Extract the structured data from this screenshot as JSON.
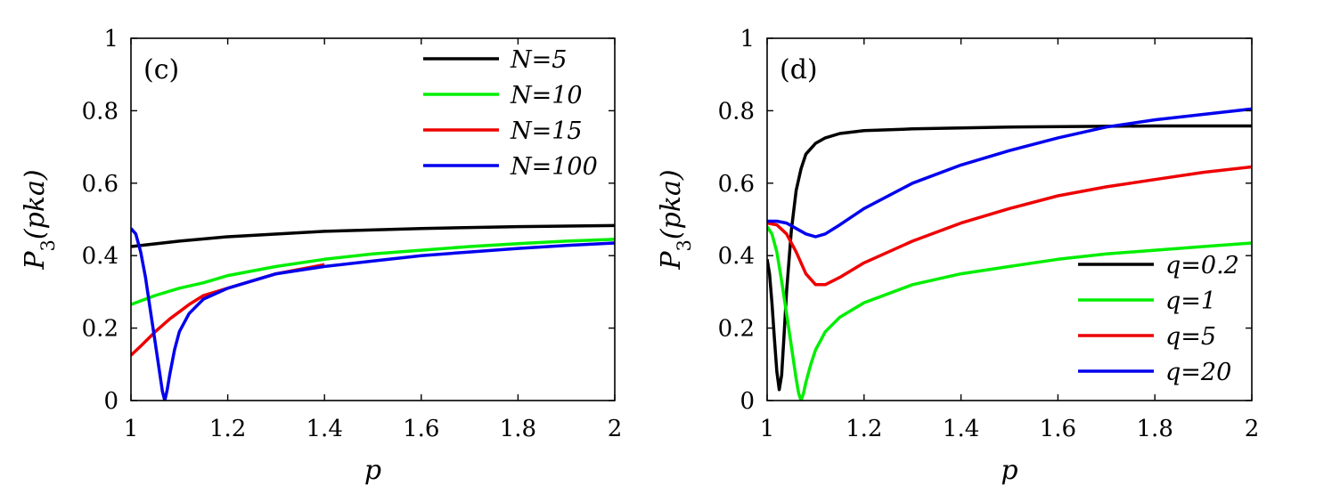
{
  "chart_data": [
    {
      "type": "line",
      "panel_label": "(c)",
      "xlabel": "p",
      "ylabel": "P3(pka)",
      "ylabel_main": "P",
      "ylabel_sub": "3",
      "ylabel_tail": "(pka)",
      "xlim": [
        1,
        2
      ],
      "ylim": [
        0,
        1
      ],
      "xticks": [
        1,
        1.2,
        1.4,
        1.6,
        1.8,
        2
      ],
      "xtick_labels": [
        "1",
        "1.2",
        "1.4",
        "1.6",
        "1.8",
        "2"
      ],
      "yticks": [
        0,
        0.2,
        0.4,
        0.6,
        0.8,
        1
      ],
      "ytick_labels": [
        "0",
        "0.2",
        "0.4",
        "0.6",
        "0.8",
        "1"
      ],
      "legend_position": "top-right",
      "series": [
        {
          "name": "N=5",
          "color": "#000000",
          "x": [
            1.0,
            1.1,
            1.2,
            1.4,
            1.6,
            1.8,
            2.0
          ],
          "y": [
            0.425,
            0.44,
            0.452,
            0.467,
            0.475,
            0.48,
            0.483
          ]
        },
        {
          "name": "N=10",
          "color": "#00ee00",
          "x": [
            1.0,
            1.05,
            1.1,
            1.15,
            1.2,
            1.3,
            1.4,
            1.5,
            1.6,
            1.7,
            1.8,
            1.9,
            2.0
          ],
          "y": [
            0.265,
            0.29,
            0.31,
            0.325,
            0.345,
            0.37,
            0.39,
            0.405,
            0.415,
            0.425,
            0.433,
            0.44,
            0.445
          ]
        },
        {
          "name": "N=15",
          "color": "#ee0000",
          "x": [
            1.0,
            1.02,
            1.05,
            1.08,
            1.1,
            1.12,
            1.15,
            1.2,
            1.3,
            1.4
          ],
          "y": [
            0.125,
            0.15,
            0.19,
            0.225,
            0.245,
            0.265,
            0.29,
            0.31,
            0.35,
            0.375
          ]
        },
        {
          "name": "N=100",
          "color": "#0000ee",
          "x": [
            1.0,
            1.01,
            1.02,
            1.03,
            1.04,
            1.05,
            1.06,
            1.065,
            1.07,
            1.075,
            1.08,
            1.09,
            1.1,
            1.12,
            1.15,
            1.2,
            1.3,
            1.4,
            1.5,
            1.6,
            1.7,
            1.8,
            1.9,
            2.0
          ],
          "y": [
            0.475,
            0.46,
            0.41,
            0.34,
            0.25,
            0.16,
            0.07,
            0.025,
            0.0,
            0.03,
            0.07,
            0.14,
            0.19,
            0.24,
            0.28,
            0.31,
            0.35,
            0.37,
            0.385,
            0.4,
            0.41,
            0.42,
            0.428,
            0.435
          ]
        }
      ]
    },
    {
      "type": "line",
      "panel_label": "(d)",
      "xlabel": "p",
      "ylabel": "P3(pka)",
      "ylabel_main": "P",
      "ylabel_sub": "3",
      "ylabel_tail": "(pka)",
      "xlim": [
        1,
        2
      ],
      "ylim": [
        0,
        1
      ],
      "xticks": [
        1,
        1.2,
        1.4,
        1.6,
        1.8,
        2
      ],
      "xtick_labels": [
        "1",
        "1.2",
        "1.4",
        "1.6",
        "1.8",
        "2"
      ],
      "yticks": [
        0,
        0.2,
        0.4,
        0.6,
        0.8,
        1
      ],
      "ytick_labels": [
        "0",
        "0.2",
        "0.4",
        "0.6",
        "0.8",
        "1"
      ],
      "legend_position": "bottom-right",
      "series": [
        {
          "name": "q=0.2",
          "color": "#000000",
          "x": [
            1.0,
            1.005,
            1.01,
            1.015,
            1.02,
            1.025,
            1.03,
            1.035,
            1.04,
            1.05,
            1.06,
            1.07,
            1.08,
            1.1,
            1.12,
            1.15,
            1.2,
            1.3,
            1.5,
            1.8,
            2.0
          ],
          "y": [
            0.39,
            0.35,
            0.27,
            0.17,
            0.08,
            0.03,
            0.07,
            0.18,
            0.3,
            0.47,
            0.58,
            0.64,
            0.68,
            0.71,
            0.725,
            0.737,
            0.745,
            0.75,
            0.755,
            0.758,
            0.758
          ]
        },
        {
          "name": "q=1",
          "color": "#00ee00",
          "x": [
            1.0,
            1.01,
            1.02,
            1.03,
            1.04,
            1.05,
            1.06,
            1.065,
            1.07,
            1.075,
            1.08,
            1.09,
            1.1,
            1.12,
            1.15,
            1.2,
            1.3,
            1.4,
            1.5,
            1.6,
            1.7,
            1.8,
            1.9,
            2.0
          ],
          "y": [
            0.48,
            0.46,
            0.41,
            0.33,
            0.24,
            0.15,
            0.06,
            0.02,
            0.0,
            0.02,
            0.05,
            0.1,
            0.14,
            0.19,
            0.23,
            0.27,
            0.32,
            0.35,
            0.37,
            0.39,
            0.405,
            0.415,
            0.425,
            0.435
          ]
        },
        {
          "name": "q=5",
          "color": "#ee0000",
          "x": [
            1.0,
            1.02,
            1.04,
            1.06,
            1.08,
            1.1,
            1.12,
            1.15,
            1.2,
            1.3,
            1.4,
            1.5,
            1.6,
            1.7,
            1.8,
            1.9,
            2.0
          ],
          "y": [
            0.49,
            0.485,
            0.46,
            0.41,
            0.35,
            0.32,
            0.32,
            0.34,
            0.38,
            0.44,
            0.49,
            0.53,
            0.565,
            0.59,
            0.61,
            0.63,
            0.645
          ]
        },
        {
          "name": "q=20",
          "color": "#0000ee",
          "x": [
            1.0,
            1.02,
            1.04,
            1.06,
            1.08,
            1.1,
            1.12,
            1.15,
            1.2,
            1.3,
            1.4,
            1.5,
            1.6,
            1.7,
            1.8,
            1.9,
            2.0
          ],
          "y": [
            0.495,
            0.495,
            0.49,
            0.475,
            0.46,
            0.452,
            0.46,
            0.485,
            0.53,
            0.6,
            0.65,
            0.69,
            0.725,
            0.755,
            0.775,
            0.79,
            0.805
          ]
        }
      ]
    }
  ]
}
